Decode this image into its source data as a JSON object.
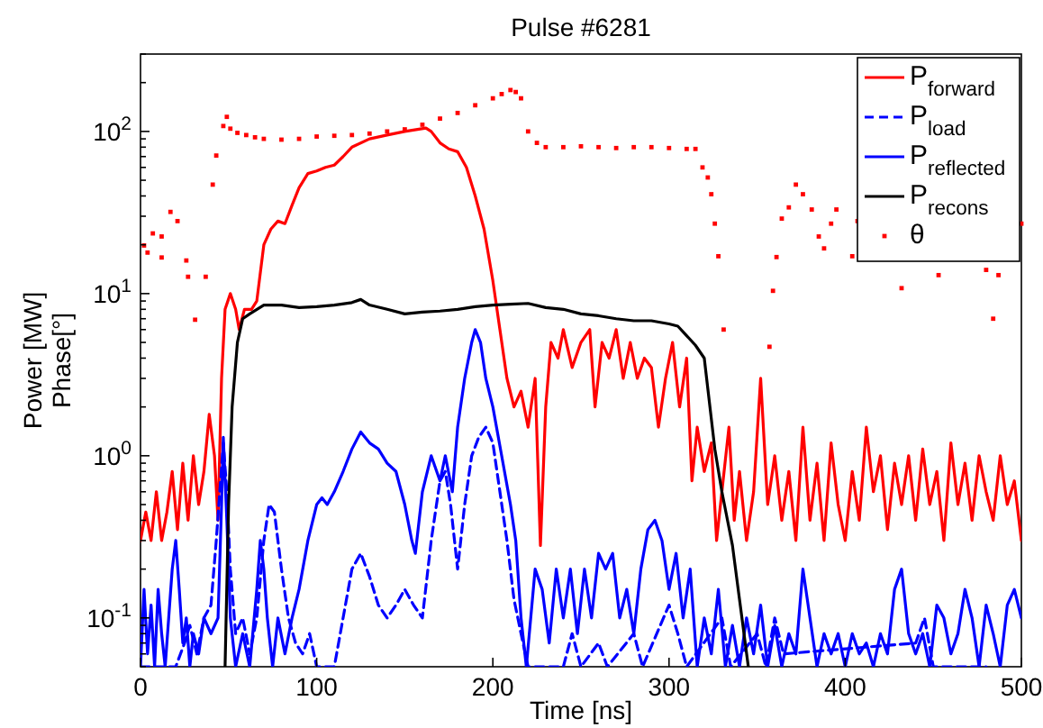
{
  "chart_data": {
    "type": "line",
    "title": "Pulse #6281",
    "xlabel": "Time [ns]",
    "ylabel": "Power [MW]\nPhase[°]",
    "log": "y",
    "grid": false,
    "legend": "top right",
    "xlim": [
      0,
      500
    ],
    "xticks": [
      0,
      100,
      200,
      300,
      400,
      500
    ],
    "ylim": [
      0.05,
      300
    ],
    "yticks": [
      {
        "value": 0.05,
        "label": null
      },
      {
        "value": 0.06,
        "label": null
      },
      {
        "value": 0.07,
        "label": null
      },
      {
        "value": 0.08,
        "label": null
      },
      {
        "value": 0.09,
        "label": null
      },
      {
        "value": 0.1,
        "label": "10$^{-1}$"
      },
      {
        "value": 0.2,
        "label": null
      },
      {
        "value": 0.3,
        "label": null
      },
      {
        "value": 0.4,
        "label": null
      },
      {
        "value": 0.5,
        "label": null
      },
      {
        "value": 0.6,
        "label": null
      },
      {
        "value": 0.7,
        "label": null
      },
      {
        "value": 0.8,
        "label": null
      },
      {
        "value": 0.9,
        "label": null
      },
      {
        "value": 1,
        "label": "10$^{0}$"
      },
      {
        "value": 2,
        "label": null
      },
      {
        "value": 3,
        "label": null
      },
      {
        "value": 4,
        "label": null
      },
      {
        "value": 5,
        "label": null
      },
      {
        "value": 6,
        "label": null
      },
      {
        "value": 7,
        "label": null
      },
      {
        "value": 8,
        "label": null
      },
      {
        "value": 9,
        "label": null
      },
      {
        "value": 10,
        "label": "10$^{1}$"
      },
      {
        "value": 20,
        "label": null
      },
      {
        "value": 30,
        "label": null
      },
      {
        "value": 40,
        "label": null
      },
      {
        "value": 50,
        "label": null
      },
      {
        "value": 60,
        "label": null
      },
      {
        "value": 70,
        "label": null
      },
      {
        "value": 80,
        "label": null
      },
      {
        "value": 90,
        "label": null
      },
      {
        "value": 100,
        "label": "10$^{2}$"
      },
      {
        "value": 200,
        "label": null
      },
      {
        "value": 300,
        "label": null
      }
    ],
    "series": [
      {
        "name": "P$_{forward}$",
        "color": "#ff0000",
        "line_style": "solid",
        "x": [
          0,
          3,
          6,
          9,
          12,
          15,
          18,
          21,
          24,
          27,
          30,
          33,
          36,
          39,
          42,
          44,
          46,
          48,
          51,
          54,
          56,
          59,
          63,
          66,
          70,
          74,
          78,
          82,
          86,
          90,
          95,
          100,
          105,
          110,
          115,
          120,
          130,
          140,
          150,
          162,
          165,
          170,
          175,
          180,
          185,
          190,
          195,
          200,
          204,
          208,
          212,
          216,
          220,
          224,
          227,
          230,
          233,
          237,
          240,
          245,
          250,
          255,
          258,
          262,
          266,
          270,
          274,
          278,
          282,
          286,
          290,
          294,
          298,
          302,
          306,
          310,
          313,
          316,
          320,
          324,
          327,
          330,
          334,
          337,
          340,
          344,
          348,
          352,
          356,
          360,
          364,
          368,
          372,
          376,
          380,
          384,
          388,
          392,
          396,
          400,
          404,
          408,
          412,
          416,
          420,
          424,
          428,
          432,
          436,
          440,
          444,
          448,
          452,
          456,
          460,
          464,
          468,
          472,
          476,
          480,
          484,
          488,
          492,
          496,
          500
        ],
        "values": [
          0.3,
          0.45,
          0.3,
          0.6,
          0.3,
          0.45,
          0.8,
          0.35,
          0.9,
          0.4,
          1.0,
          0.5,
          0.8,
          1.8,
          1.0,
          0.4,
          3,
          8,
          10,
          8,
          6,
          8,
          8,
          9,
          20,
          25,
          28,
          27,
          35,
          45,
          55,
          57,
          60,
          62,
          70,
          80,
          90,
          95,
          100,
          105,
          100,
          85,
          78,
          75,
          60,
          40,
          25,
          12,
          6,
          3,
          2,
          2.5,
          1.5,
          3,
          0.28,
          2,
          5,
          4,
          6,
          3.5,
          5,
          6,
          2,
          5,
          4,
          6,
          3,
          5,
          3,
          4,
          3.5,
          1.5,
          3,
          5,
          2,
          4,
          0.7,
          1.5,
          0.8,
          1.2,
          0.3,
          0.6,
          1.5,
          0.4,
          0.8,
          0.3,
          0.6,
          3,
          0.5,
          1,
          0.4,
          0.8,
          0.3,
          1.5,
          0.4,
          0.9,
          0.3,
          1.2,
          0.5,
          0.3,
          0.8,
          0.4,
          1.5,
          0.6,
          1,
          0.35,
          0.9,
          0.5,
          1,
          0.4,
          1.1,
          0.5,
          0.8,
          0.3,
          1.2,
          0.5,
          0.9,
          0.4,
          1,
          0.6,
          0.4,
          1,
          0.5,
          0.7,
          0.3
        ]
      },
      {
        "name": "P$_{load}$",
        "color": "#0000ff",
        "line_style": "dashed",
        "x": [
          0,
          20,
          25,
          28,
          32,
          36,
          40,
          43,
          45,
          47,
          49,
          51,
          54,
          58,
          62,
          66,
          70,
          73,
          76,
          80,
          84,
          88,
          92,
          96,
          100,
          110,
          115,
          120,
          125,
          130,
          135,
          140,
          145,
          150,
          155,
          160,
          165,
          170,
          173,
          176,
          180,
          184,
          188,
          192,
          196,
          200,
          204,
          208,
          212,
          216,
          220,
          240,
          245,
          250,
          260,
          265,
          280,
          285,
          300,
          305,
          310,
          330,
          335,
          350,
          355,
          360,
          365,
          440,
          445,
          450,
          480
        ],
        "values": [
          0.05,
          0.05,
          0.07,
          0.09,
          0.06,
          0.1,
          0.12,
          0.3,
          0.6,
          1.2,
          0.6,
          0.2,
          0.08,
          0.1,
          0.06,
          0.1,
          0.3,
          0.5,
          0.45,
          0.2,
          0.1,
          0.07,
          0.06,
          0.08,
          0.05,
          0.05,
          0.1,
          0.2,
          0.25,
          0.18,
          0.12,
          0.1,
          0.12,
          0.15,
          0.12,
          0.1,
          0.3,
          0.7,
          0.8,
          0.5,
          0.2,
          0.5,
          1,
          1.3,
          1.5,
          1.2,
          0.6,
          0.3,
          0.13,
          0.08,
          0.05,
          0.05,
          0.08,
          0.05,
          0.07,
          0.05,
          0.08,
          0.05,
          0.12,
          0.08,
          0.05,
          0.1,
          0.05,
          0.08,
          0.05,
          0.1,
          0.06,
          0.07,
          0.1,
          0.05,
          0.05
        ]
      },
      {
        "name": "P$_{reflected}$",
        "color": "#0000ff",
        "line_style": "solid",
        "x": [
          0,
          2,
          4,
          6,
          8,
          10,
          12,
          14,
          16,
          18,
          20,
          22,
          24,
          26,
          28,
          30,
          33,
          36,
          40,
          44,
          46,
          47,
          49,
          51,
          54,
          58,
          62,
          66,
          68,
          70,
          72,
          75,
          78,
          82,
          86,
          90,
          95,
          100,
          103,
          106,
          110,
          115,
          120,
          125,
          130,
          135,
          140,
          145,
          150,
          154,
          156,
          160,
          165,
          170,
          173,
          177,
          180,
          184,
          188,
          190,
          193,
          196,
          200,
          205,
          210,
          213,
          216,
          219,
          224,
          228,
          232,
          236,
          240,
          244,
          248,
          252,
          256,
          260,
          264,
          268,
          272,
          276,
          280,
          284,
          288,
          292,
          296,
          300,
          304,
          308,
          312,
          316,
          320,
          324,
          328,
          332,
          336,
          340,
          344,
          348,
          352,
          356,
          360,
          364,
          368,
          372,
          376,
          380,
          384,
          388,
          392,
          396,
          400,
          404,
          408,
          412,
          416,
          420,
          424,
          428,
          432,
          436,
          440,
          444,
          448,
          452,
          456,
          460,
          464,
          468,
          472,
          476,
          480,
          484,
          488,
          492,
          496,
          500
        ],
        "values": [
          0.05,
          0.15,
          0.06,
          0.12,
          0.05,
          0.15,
          0.08,
          0.05,
          0.1,
          0.2,
          0.3,
          0.15,
          0.07,
          0.1,
          0.05,
          0.08,
          0.06,
          0.1,
          0.08,
          0.1,
          0.5,
          1.3,
          0.4,
          0.1,
          0.05,
          0.08,
          0.05,
          0.15,
          0.3,
          0.2,
          0.1,
          0.05,
          0.1,
          0.06,
          0.1,
          0.15,
          0.3,
          0.5,
          0.55,
          0.5,
          0.6,
          0.8,
          1.1,
          1.4,
          1.2,
          1.1,
          0.9,
          0.8,
          0.5,
          0.3,
          0.25,
          0.6,
          1.0,
          0.7,
          1.0,
          0.6,
          1.5,
          3,
          5,
          6,
          5,
          3,
          2,
          1,
          0.5,
          0.3,
          0.1,
          0.05,
          0.2,
          0.15,
          0.07,
          0.2,
          0.1,
          0.2,
          0.08,
          0.2,
          0.1,
          0.25,
          0.2,
          0.25,
          0.1,
          0.15,
          0.08,
          0.2,
          0.35,
          0.4,
          0.3,
          0.15,
          0.25,
          0.1,
          0.2,
          0.05,
          0.1,
          0.06,
          0.15,
          0.05,
          0.09,
          0.05,
          0.1,
          0.06,
          0.12,
          0.05,
          0.09,
          0.05,
          0.08,
          0.06,
          0.2,
          0.1,
          0.05,
          0.08,
          0.06,
          0.08,
          0.05,
          0.08,
          0.06,
          0.07,
          0.05,
          0.08,
          0.06,
          0.15,
          0.2,
          0.08,
          0.06,
          0.08,
          0.05,
          0.12,
          0.1,
          0.06,
          0.08,
          0.15,
          0.1,
          0.05,
          0.12,
          0.08,
          0.05,
          0.12,
          0.15,
          0.1
        ]
      },
      {
        "name": "P$_{recons}$",
        "color": "#000000",
        "line_style": "solid",
        "x": [
          48,
          50,
          52,
          55,
          58,
          62,
          70,
          80,
          90,
          100,
          110,
          120,
          125,
          130,
          140,
          150,
          160,
          170,
          180,
          190,
          200,
          210,
          220,
          230,
          240,
          250,
          260,
          270,
          280,
          290,
          300,
          305,
          310,
          315,
          320,
          326,
          330,
          336,
          340,
          345
        ],
        "values": [
          0.05,
          0.5,
          2,
          5,
          7,
          7.5,
          8.5,
          8.5,
          8.2,
          8.3,
          8.5,
          8.8,
          9.2,
          8.5,
          8,
          7.5,
          7.7,
          7.8,
          8,
          8.3,
          8.5,
          8.6,
          8.7,
          8.2,
          8,
          7.5,
          7.3,
          7,
          6.8,
          6.8,
          6.5,
          6.3,
          5.5,
          4.8,
          4,
          1.1,
          0.6,
          0.28,
          0.13,
          0.05
        ]
      },
      {
        "name": "θ",
        "type": "scatter",
        "color": "#ff0000",
        "marker": "square",
        "x": [
          2,
          4,
          7,
          12,
          12,
          17,
          21,
          26,
          27,
          31,
          37,
          41,
          43,
          47,
          49,
          51,
          55,
          60,
          65,
          70,
          80,
          90,
          100,
          110,
          120,
          130,
          140,
          150,
          160,
          170,
          180,
          190,
          200,
          205,
          210,
          213,
          216,
          220,
          225,
          230,
          240,
          250,
          260,
          270,
          280,
          290,
          300,
          310,
          315,
          319,
          322,
          324,
          326,
          328,
          331,
          357,
          359,
          361,
          364,
          368,
          372,
          376,
          381,
          385,
          388,
          392,
          395,
          404,
          407,
          432,
          453,
          480,
          484,
          487,
          500
        ],
        "values": [
          19.8,
          17.9,
          23.5,
          22.5,
          16.7,
          31.9,
          28,
          16,
          12.7,
          6.9,
          12.7,
          47,
          71,
          108,
          123,
          104,
          98,
          95,
          92,
          90,
          89,
          90,
          93,
          94,
          95,
          97,
          100,
          103,
          110,
          120,
          130,
          145,
          160,
          170,
          180,
          175,
          160,
          100,
          85,
          80,
          80,
          81,
          80,
          79,
          80,
          80,
          79,
          78,
          78,
          60,
          52,
          41,
          27,
          17,
          6,
          4.7,
          10.4,
          16.8,
          29,
          34,
          47,
          41,
          33,
          22.5,
          19,
          27,
          33,
          17,
          28,
          10.8,
          13,
          14,
          7,
          13,
          27
        ]
      }
    ]
  }
}
